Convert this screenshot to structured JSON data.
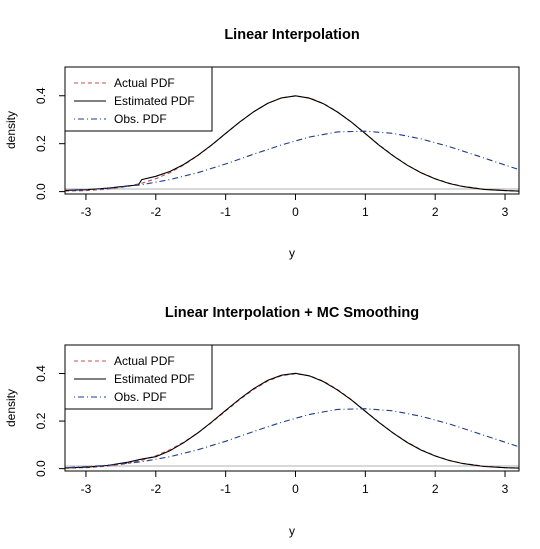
{
  "colors": {
    "actual": "#c0504d",
    "estimated": "#000000",
    "observed": "#1f3c88",
    "zero_line": "#b0b0b0"
  },
  "chart_data": [
    {
      "type": "line",
      "title": "Linear Interpolation",
      "xlabel": "y",
      "ylabel": "density",
      "xlim": [
        -3.3,
        3.2
      ],
      "ylim": [
        -0.01,
        0.52
      ],
      "xticks": [
        -3,
        -2,
        -1,
        0,
        1,
        2,
        3
      ],
      "xtick_labels": [
        "-3",
        "-2",
        "-1",
        "0",
        "1",
        "2",
        "3"
      ],
      "yticks": [
        0.0,
        0.2,
        0.4
      ],
      "ytick_labels": [
        "0.0",
        "0.2",
        "0.4"
      ],
      "grid": false,
      "legend_position": "top-left",
      "series": [
        {
          "name": "Actual PDF",
          "style": "dashed",
          "color_key": "actual",
          "x": [
            -3.3,
            -3.0,
            -2.7,
            -2.4,
            -2.2,
            -2.0,
            -1.8,
            -1.6,
            -1.4,
            -1.2,
            -1.0,
            -0.8,
            -0.6,
            -0.4,
            -0.2,
            0.0,
            0.2,
            0.4,
            0.6,
            0.8,
            1.0,
            1.2,
            1.4,
            1.6,
            1.8,
            2.0,
            2.2,
            2.4,
            2.7,
            3.0,
            3.2
          ],
          "y": [
            0.002,
            0.004,
            0.01,
            0.022,
            0.035,
            0.054,
            0.079,
            0.111,
            0.15,
            0.194,
            0.242,
            0.29,
            0.333,
            0.368,
            0.391,
            0.399,
            0.391,
            0.368,
            0.333,
            0.29,
            0.242,
            0.194,
            0.15,
            0.111,
            0.079,
            0.054,
            0.035,
            0.022,
            0.01,
            0.004,
            0.002
          ]
        },
        {
          "name": "Estimated PDF",
          "style": "solid",
          "color_key": "estimated",
          "x": [
            -3.3,
            -3.0,
            -2.7,
            -2.4,
            -2.25,
            -2.2,
            -2.0,
            -1.8,
            -1.6,
            -1.4,
            -1.2,
            -1.0,
            -0.8,
            -0.6,
            -0.4,
            -0.2,
            0.0,
            0.2,
            0.4,
            0.6,
            0.8,
            1.0,
            1.2,
            1.4,
            1.6,
            1.8,
            2.0,
            2.2,
            2.4,
            2.7,
            3.0,
            3.2
          ],
          "y": [
            0.005,
            0.008,
            0.014,
            0.024,
            0.028,
            0.05,
            0.064,
            0.084,
            0.113,
            0.151,
            0.195,
            0.243,
            0.29,
            0.333,
            0.368,
            0.391,
            0.4,
            0.39,
            0.367,
            0.332,
            0.29,
            0.242,
            0.193,
            0.149,
            0.11,
            0.078,
            0.053,
            0.034,
            0.021,
            0.009,
            0.004,
            0.002
          ]
        },
        {
          "name": "Obs. PDF",
          "style": "dotdash",
          "color_key": "observed",
          "x": [
            -3.3,
            -3.0,
            -2.6,
            -2.2,
            -1.8,
            -1.4,
            -1.0,
            -0.6,
            -0.2,
            0.2,
            0.6,
            1.0,
            1.4,
            1.8,
            2.2,
            2.6,
            3.0,
            3.2
          ],
          "y": [
            0.004,
            0.008,
            0.016,
            0.029,
            0.05,
            0.079,
            0.115,
            0.156,
            0.195,
            0.228,
            0.249,
            0.252,
            0.243,
            0.22,
            0.188,
            0.15,
            0.111,
            0.092
          ]
        }
      ]
    },
    {
      "type": "line",
      "title": "Linear Interpolation + MC Smoothing",
      "xlabel": "y",
      "ylabel": "density",
      "xlim": [
        -3.3,
        3.2
      ],
      "ylim": [
        -0.01,
        0.52
      ],
      "xticks": [
        -3,
        -2,
        -1,
        0,
        1,
        2,
        3
      ],
      "xtick_labels": [
        "-3",
        "-2",
        "-1",
        "0",
        "1",
        "2",
        "3"
      ],
      "yticks": [
        0.0,
        0.2,
        0.4
      ],
      "ytick_labels": [
        "0.0",
        "0.2",
        "0.4"
      ],
      "grid": false,
      "legend_position": "top-left",
      "series": [
        {
          "name": "Actual PDF",
          "style": "dashed",
          "color_key": "actual",
          "x": [
            -3.3,
            -3.0,
            -2.7,
            -2.4,
            -2.2,
            -2.0,
            -1.8,
            -1.6,
            -1.4,
            -1.2,
            -1.0,
            -0.8,
            -0.6,
            -0.4,
            -0.2,
            0.0,
            0.2,
            0.4,
            0.6,
            0.8,
            1.0,
            1.2,
            1.4,
            1.6,
            1.8,
            2.0,
            2.2,
            2.4,
            2.7,
            3.0,
            3.2
          ],
          "y": [
            0.002,
            0.004,
            0.01,
            0.022,
            0.035,
            0.054,
            0.079,
            0.111,
            0.15,
            0.194,
            0.242,
            0.29,
            0.333,
            0.368,
            0.391,
            0.399,
            0.391,
            0.368,
            0.333,
            0.29,
            0.242,
            0.194,
            0.15,
            0.111,
            0.079,
            0.054,
            0.035,
            0.022,
            0.01,
            0.004,
            0.002
          ]
        },
        {
          "name": "Estimated PDF",
          "style": "solid",
          "color_key": "estimated",
          "x": [
            -3.3,
            -3.0,
            -2.7,
            -2.4,
            -2.2,
            -2.0,
            -1.8,
            -1.6,
            -1.4,
            -1.2,
            -1.0,
            -0.8,
            -0.6,
            -0.4,
            -0.2,
            0.0,
            0.2,
            0.4,
            0.6,
            0.8,
            1.0,
            1.2,
            1.4,
            1.6,
            1.8,
            2.0,
            2.2,
            2.4,
            2.7,
            3.0,
            3.2
          ],
          "y": [
            0.003,
            0.006,
            0.013,
            0.027,
            0.04,
            0.05,
            0.075,
            0.109,
            0.15,
            0.196,
            0.245,
            0.293,
            0.336,
            0.371,
            0.393,
            0.401,
            0.39,
            0.366,
            0.331,
            0.289,
            0.241,
            0.193,
            0.149,
            0.11,
            0.078,
            0.053,
            0.034,
            0.021,
            0.009,
            0.004,
            0.002
          ]
        },
        {
          "name": "Obs. PDF",
          "style": "dotdash",
          "color_key": "observed",
          "x": [
            -3.3,
            -3.0,
            -2.6,
            -2.2,
            -1.8,
            -1.4,
            -1.0,
            -0.6,
            -0.2,
            0.2,
            0.6,
            1.0,
            1.4,
            1.8,
            2.2,
            2.6,
            3.0,
            3.2
          ],
          "y": [
            0.004,
            0.008,
            0.016,
            0.029,
            0.05,
            0.079,
            0.115,
            0.156,
            0.195,
            0.228,
            0.249,
            0.252,
            0.243,
            0.22,
            0.188,
            0.15,
            0.111,
            0.092
          ]
        }
      ]
    }
  ]
}
